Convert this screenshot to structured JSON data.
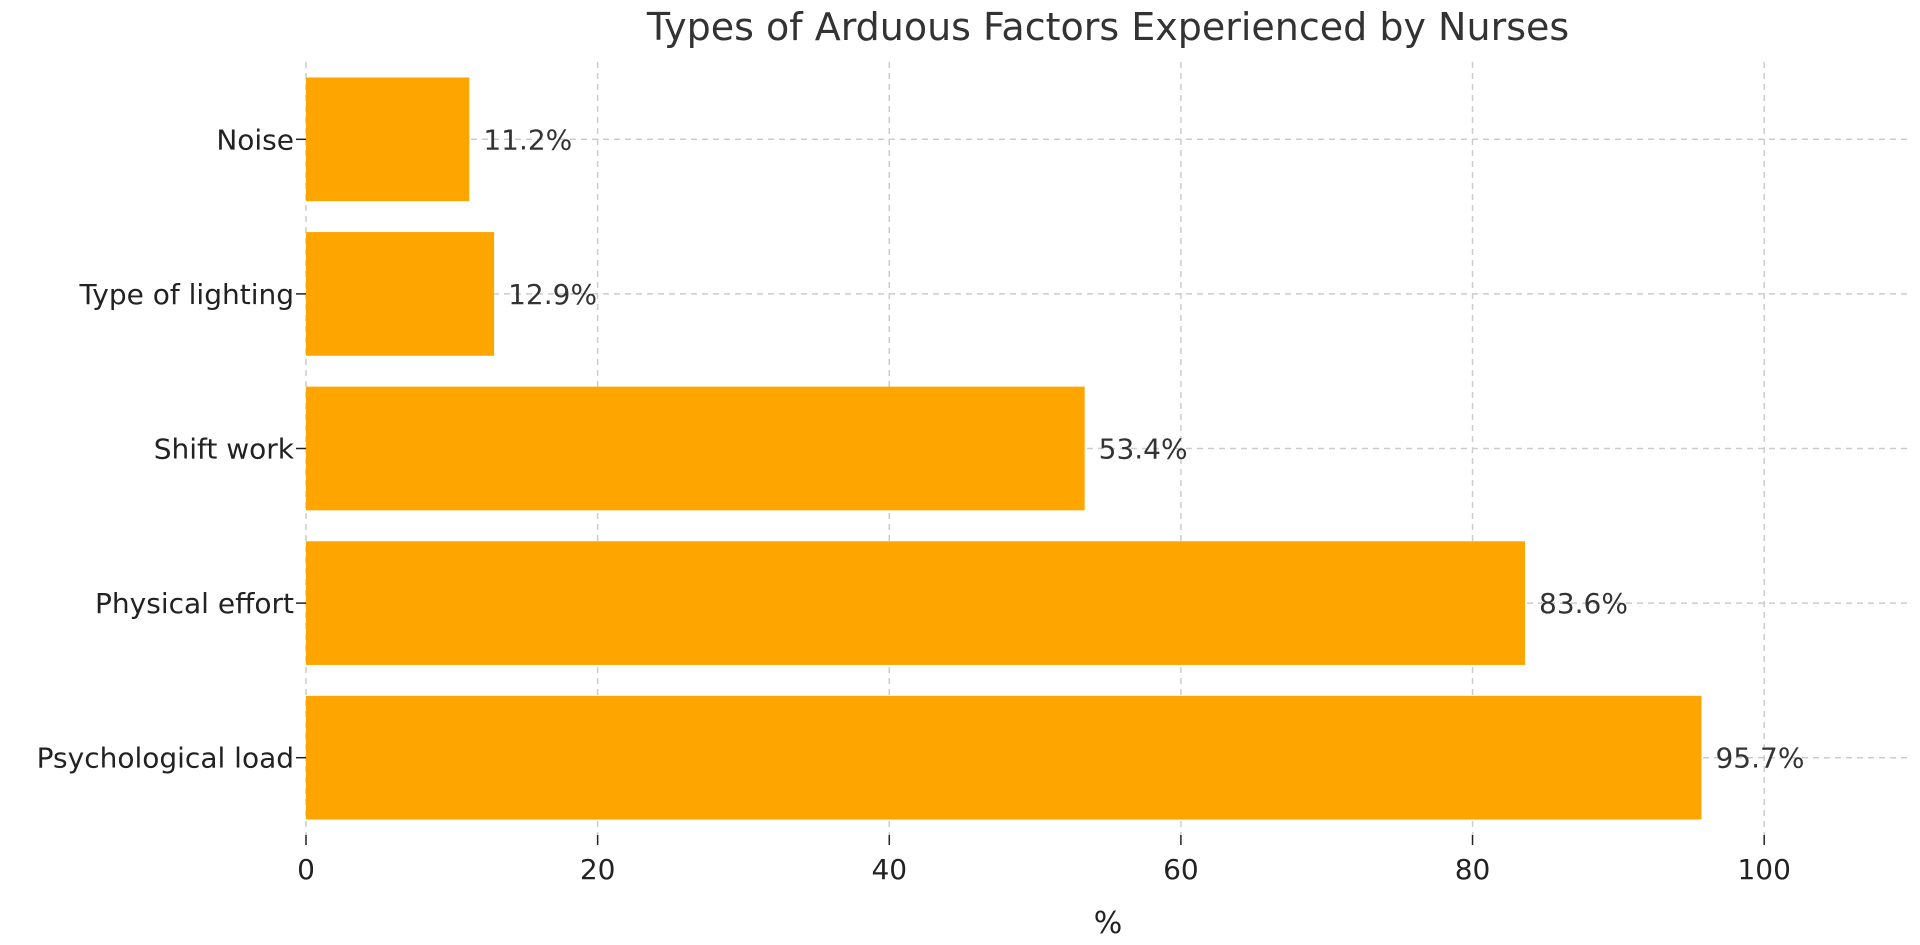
{
  "chart_data": {
    "type": "bar",
    "orientation": "horizontal",
    "title": "Types of Arduous Factors Experienced by Nurses",
    "xlabel": "%",
    "ylabel": "",
    "categories": [
      "Noise",
      "Type of lighting",
      "Shift work",
      "Physical effort",
      "Psychological load"
    ],
    "values": [
      11.2,
      12.9,
      53.4,
      83.6,
      95.7
    ],
    "value_labels": [
      "11.2%",
      "12.9%",
      "53.4%",
      "83.6%",
      "95.7%"
    ],
    "xlim": [
      0,
      110
    ],
    "xticks": [
      0,
      20,
      40,
      60,
      80,
      100
    ],
    "grid": true,
    "bar_color": "#FFA500"
  }
}
